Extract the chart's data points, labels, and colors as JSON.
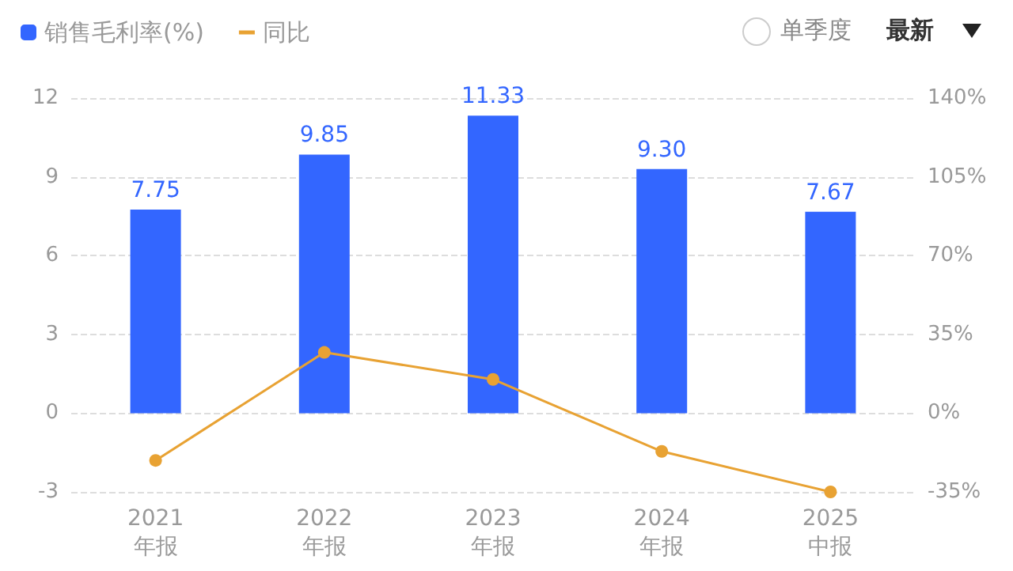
{
  "chart_data": {
    "type": "bar",
    "categories": [
      "2021\n年报",
      "2022\n年报",
      "2023\n年报",
      "2024\n年报",
      "2025\n中报"
    ],
    "series": [
      {
        "name": "销售毛利率(%)",
        "color": "#3366ff",
        "values": [
          7.75,
          9.85,
          11.33,
          9.3,
          7.67
        ],
        "value_labels": [
          "7.75",
          "9.85",
          "11.33",
          "9.30",
          "7.67"
        ]
      },
      {
        "name": "同比",
        "type": "line",
        "axis": "y2",
        "color": "#e8a233",
        "values": [
          -21,
          27,
          15,
          -17,
          -35
        ]
      }
    ],
    "ylim": [
      -3,
      12
    ],
    "yticks": [
      -3,
      0,
      3,
      6,
      9,
      12
    ],
    "y2lim": [
      -35,
      140
    ],
    "y2ticks": [
      {
        "value": -35,
        "label": "-35%"
      },
      {
        "value": 0,
        "label": "0%"
      },
      {
        "value": 35,
        "label": "35%"
      },
      {
        "value": 70,
        "label": "70%"
      },
      {
        "value": 105,
        "label": "105%"
      },
      {
        "value": 140,
        "label": "140%"
      }
    ],
    "grid": "y",
    "legend": "top left",
    "marker": "circle",
    "annotations": [
      "单季度",
      "最新"
    ]
  }
}
